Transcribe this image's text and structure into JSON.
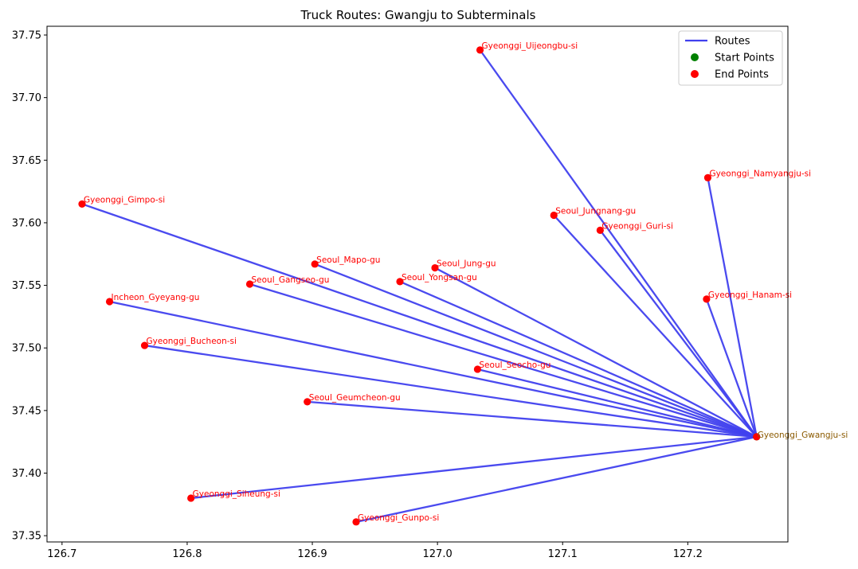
{
  "chart_data": {
    "type": "scatter",
    "title": "Truck Routes: Gwangju to Subterminals",
    "xlabel": "",
    "ylabel": "",
    "xlim": [
      126.688,
      127.28
    ],
    "ylim": [
      37.345,
      37.757
    ],
    "xticks": [
      126.7,
      126.8,
      126.9,
      127.0,
      127.1,
      127.2
    ],
    "xtick_labels": [
      "126.7",
      "126.8",
      "126.9",
      "127.0",
      "127.1",
      "127.2"
    ],
    "yticks": [
      37.35,
      37.4,
      37.45,
      37.5,
      37.55,
      37.6,
      37.65,
      37.7,
      37.75
    ],
    "ytick_labels": [
      "37.35",
      "37.40",
      "37.45",
      "37.50",
      "37.55",
      "37.60",
      "37.65",
      "37.70",
      "37.75"
    ],
    "grid": false,
    "legend_position": "top-right",
    "legend": [
      {
        "label": "Routes",
        "kind": "line",
        "color": "#4040ee"
      },
      {
        "label": "Start Points",
        "kind": "dot",
        "color": "#008000"
      },
      {
        "label": "End Points",
        "kind": "dot",
        "color": "#ff0000"
      }
    ],
    "colors": {
      "route": "#4040ee",
      "start": "#008000",
      "end": "#ff0000",
      "start_label": "#8b5a00",
      "end_label": "#ff0000"
    },
    "start": {
      "name": "Gyeonggi_Gwangju-si",
      "x": 127.255,
      "y": 37.429
    },
    "ends": [
      {
        "name": "Gyeonggi_Uijeongbu-si",
        "x": 127.034,
        "y": 37.738
      },
      {
        "name": "Gyeonggi_Namyangju-si",
        "x": 127.216,
        "y": 37.636
      },
      {
        "name": "Gyeonggi_Gimpo-si",
        "x": 126.716,
        "y": 37.615
      },
      {
        "name": "Seoul_Jungnang-gu",
        "x": 127.093,
        "y": 37.606
      },
      {
        "name": "Gyeonggi_Guri-si",
        "x": 127.13,
        "y": 37.594
      },
      {
        "name": "Seoul_Mapo-gu",
        "x": 126.902,
        "y": 37.567
      },
      {
        "name": "Seoul_Jung-gu",
        "x": 126.998,
        "y": 37.564
      },
      {
        "name": "Seoul_Gangseo-gu",
        "x": 126.85,
        "y": 37.551
      },
      {
        "name": "Seoul_Yongsan-gu",
        "x": 126.97,
        "y": 37.553
      },
      {
        "name": "Incheon_Gyeyang-gu",
        "x": 126.738,
        "y": 37.537
      },
      {
        "name": "Gyeonggi_Hanam-si",
        "x": 127.215,
        "y": 37.539
      },
      {
        "name": "Gyeonggi_Bucheon-si",
        "x": 126.766,
        "y": 37.502
      },
      {
        "name": "Seoul_Seocho-gu",
        "x": 127.032,
        "y": 37.483
      },
      {
        "name": "Seoul_Geumcheon-gu",
        "x": 126.896,
        "y": 37.457
      },
      {
        "name": "Gyeonggi_Siheung-si",
        "x": 126.803,
        "y": 37.38
      },
      {
        "name": "Gyeonggi_Gunpo-si",
        "x": 126.935,
        "y": 37.361
      }
    ]
  }
}
